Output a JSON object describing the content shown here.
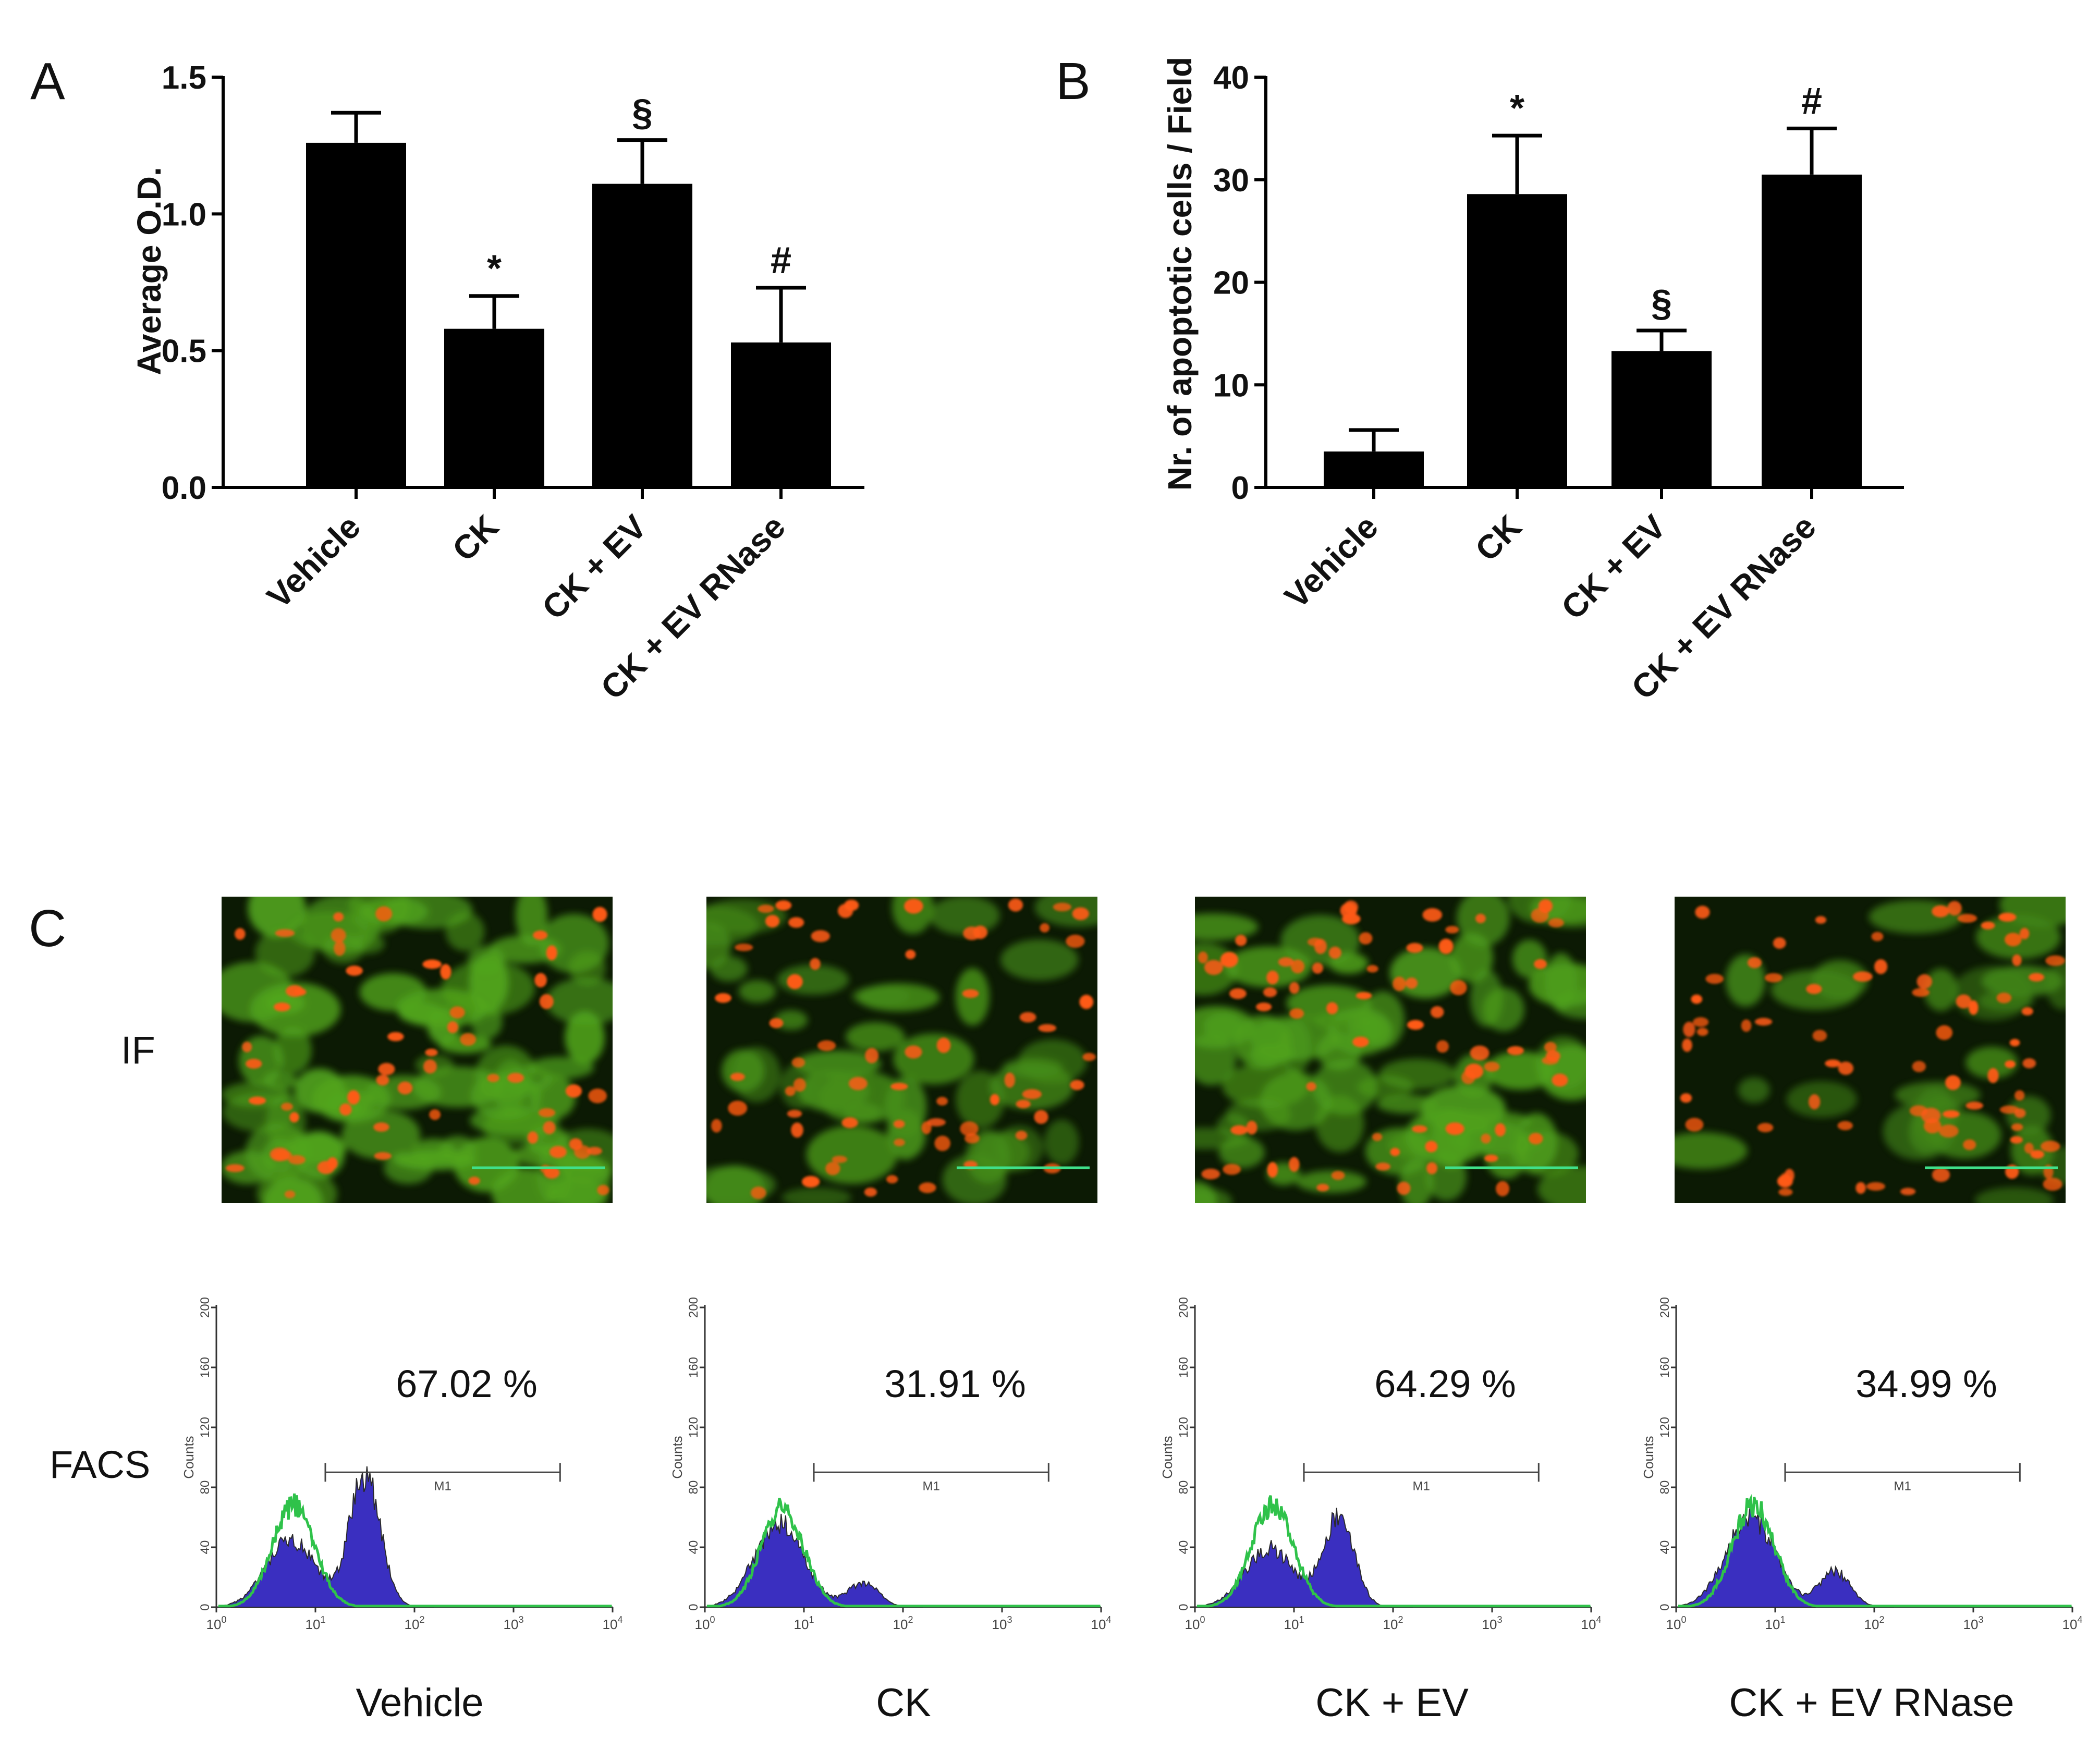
{
  "chart_data": [
    {
      "panel": "A",
      "type": "bar",
      "categories": [
        "Vehicle",
        "CK",
        "CK + EV",
        "CK + EV RNase"
      ],
      "values": [
        1.26,
        0.58,
        1.11,
        0.53
      ],
      "errors": [
        0.11,
        0.12,
        0.16,
        0.2
      ],
      "annotations": [
        "",
        "*",
        "§",
        "#"
      ],
      "ylabel": "Average O.D.",
      "ylim": [
        0,
        1.5
      ],
      "yticks": [
        "0.0",
        "0.5",
        "1.0",
        "1.5"
      ],
      "ytick_values": [
        0,
        0.5,
        1.0,
        1.5
      ]
    },
    {
      "panel": "B",
      "type": "bar",
      "categories": [
        "Vehicle",
        "CK",
        "CK + EV",
        "CK + EV RNase"
      ],
      "values": [
        3.5,
        28.6,
        13.3,
        30.5
      ],
      "errors": [
        2.1,
        5.7,
        2.0,
        4.5
      ],
      "annotations": [
        "",
        "*",
        "§",
        "#"
      ],
      "ylabel": "Nr. of apoptotic cells / Field",
      "ylim": [
        0,
        40
      ],
      "yticks": [
        "0",
        "10",
        "20",
        "30",
        "40"
      ],
      "ytick_values": [
        0,
        10,
        20,
        30,
        40
      ]
    }
  ],
  "panel_c": {
    "label": "C",
    "row_labels": {
      "if": "IF",
      "facs": "FACS"
    },
    "conditions": [
      {
        "name": "Vehicle",
        "percent": "67.02 %"
      },
      {
        "name": "CK",
        "percent": "31.91 %"
      },
      {
        "name": "CK + EV",
        "percent": "64.29 %"
      },
      {
        "name": "CK + EV RNase",
        "percent": "34.99 %"
      }
    ],
    "facs_axis": {
      "ylabel": "Counts",
      "yticks": [
        "0",
        "40",
        "80",
        "120",
        "160",
        "200"
      ],
      "xticks": [
        "10",
        "10",
        "10",
        "10",
        "10"
      ],
      "xtick_exponents": [
        "0",
        "1",
        "2",
        "3",
        "4"
      ],
      "marker_label": "M1"
    }
  },
  "colors": {
    "bar": "#000000",
    "if_background": "#0c1a04",
    "if_cytoplasm": "#5fbf22",
    "if_nucleus": "#ff5a14",
    "scale_bar": "#3fe08a",
    "facs_fill": "#3a2fc0",
    "facs_outline": "#2a2a2a",
    "facs_control": "#2fc24a"
  }
}
